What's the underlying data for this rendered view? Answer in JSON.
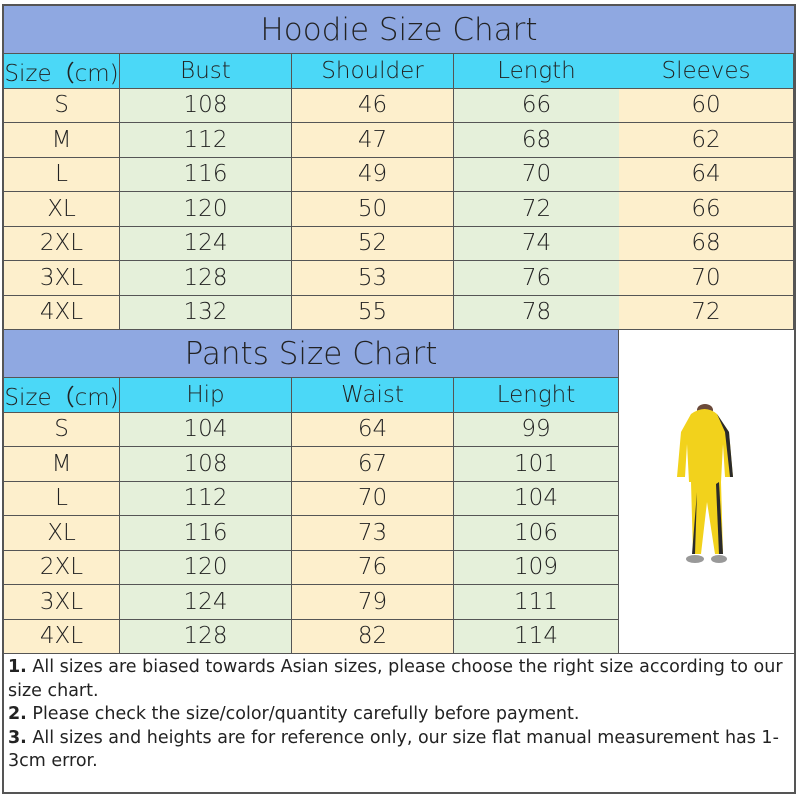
{
  "hoodie": {
    "title": "Hoodie Size Chart",
    "headers": [
      "Size（cm)",
      "Bust",
      "Shoulder",
      "Length",
      "Sleeves"
    ],
    "rows": [
      [
        "S",
        "108",
        "46",
        "66",
        "60"
      ],
      [
        "M",
        "112",
        "47",
        "68",
        "62"
      ],
      [
        "L",
        "116",
        "49",
        "70",
        "64"
      ],
      [
        "XL",
        "120",
        "50",
        "72",
        "66"
      ],
      [
        "2XL",
        "124",
        "52",
        "74",
        "68"
      ],
      [
        "3XL",
        "128",
        "53",
        "76",
        "70"
      ],
      [
        "4XL",
        "132",
        "55",
        "78",
        "72"
      ]
    ]
  },
  "pants": {
    "title": "Pants Size Chart",
    "headers": [
      "Size（cm)",
      "Hip",
      "Waist",
      "Lenght"
    ],
    "rows": [
      [
        "S",
        "104",
        "64",
        "99"
      ],
      [
        "M",
        "108",
        "67",
        "101"
      ],
      [
        "L",
        "112",
        "70",
        "104"
      ],
      [
        "XL",
        "116",
        "73",
        "106"
      ],
      [
        "2XL",
        "120",
        "76",
        "109"
      ],
      [
        "3XL",
        "124",
        "79",
        "111"
      ],
      [
        "4XL",
        "128",
        "82",
        "114"
      ]
    ]
  },
  "notes": [
    {
      "num": "1.",
      "text": " All sizes are biased towards Asian sizes, please choose the right size according to our size chart."
    },
    {
      "num": "2.",
      "text": " Please check the size/color/quantity carefully before payment."
    },
    {
      "num": "3.",
      "text": " All sizes and heights are for reference only, our size flat manual measurement has 1-3cm error."
    }
  ],
  "colors": {
    "title_bg": "#8fa8e1",
    "header_bg": "#4bd8f7",
    "cream": "#fdefcc",
    "green": "#e5f0da",
    "garment": "#f2d21c"
  },
  "image": {
    "icon": "yellow-tracksuit-model-photo"
  }
}
